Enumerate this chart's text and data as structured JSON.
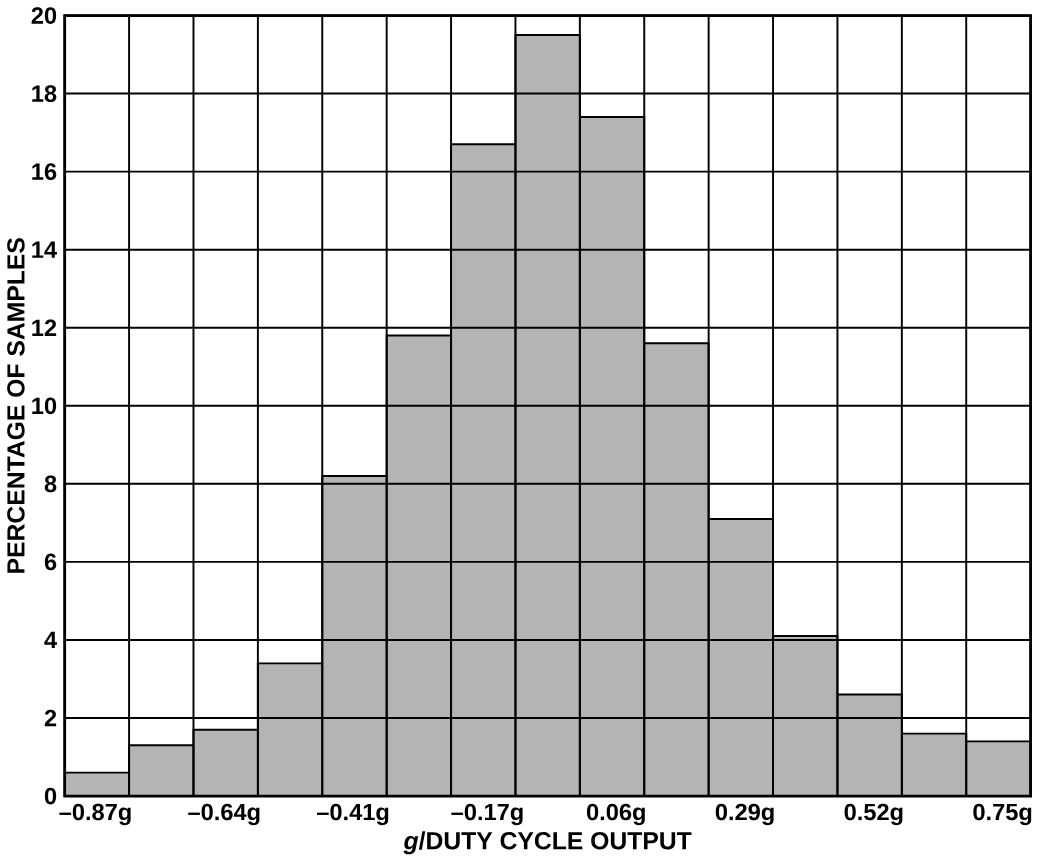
{
  "chart_data": {
    "type": "histogram",
    "xlabel": "*g*/DUTY CYCLE OUTPUT",
    "ylabel": "PERCENTAGE OF SAMPLES",
    "bins": [
      -0.925,
      -0.81,
      -0.695,
      -0.58,
      -0.465,
      -0.35,
      -0.235,
      -0.12,
      -0.005,
      0.11,
      0.225,
      0.34,
      0.455,
      0.57,
      0.685,
      0.8
    ],
    "values": [
      0.6,
      1.3,
      1.7,
      3.4,
      8.2,
      11.8,
      16.7,
      19.5,
      17.4,
      11.6,
      7.1,
      4.1,
      2.6,
      1.6,
      1.4
    ],
    "color": "#b4b4b4",
    "xlim": [
      -0.925,
      0.8
    ],
    "ylim": [
      0,
      20
    ],
    "xticks": [
      {
        "value": -0.87,
        "label": "–0.87g"
      },
      {
        "value": -0.64,
        "label": "–0.64g"
      },
      {
        "value": -0.41,
        "label": "–0.41g"
      },
      {
        "value": -0.17,
        "label": "–0.17g"
      },
      {
        "value": 0.06,
        "label": "0.06g"
      },
      {
        "value": 0.29,
        "label": "0.29g"
      },
      {
        "value": 0.52,
        "label": "0.52g"
      },
      {
        "value": 0.75,
        "label": "0.75g"
      }
    ],
    "yticks": [
      0,
      2,
      4,
      6,
      8,
      10,
      12,
      14,
      16,
      18,
      20
    ],
    "grid": true
  }
}
